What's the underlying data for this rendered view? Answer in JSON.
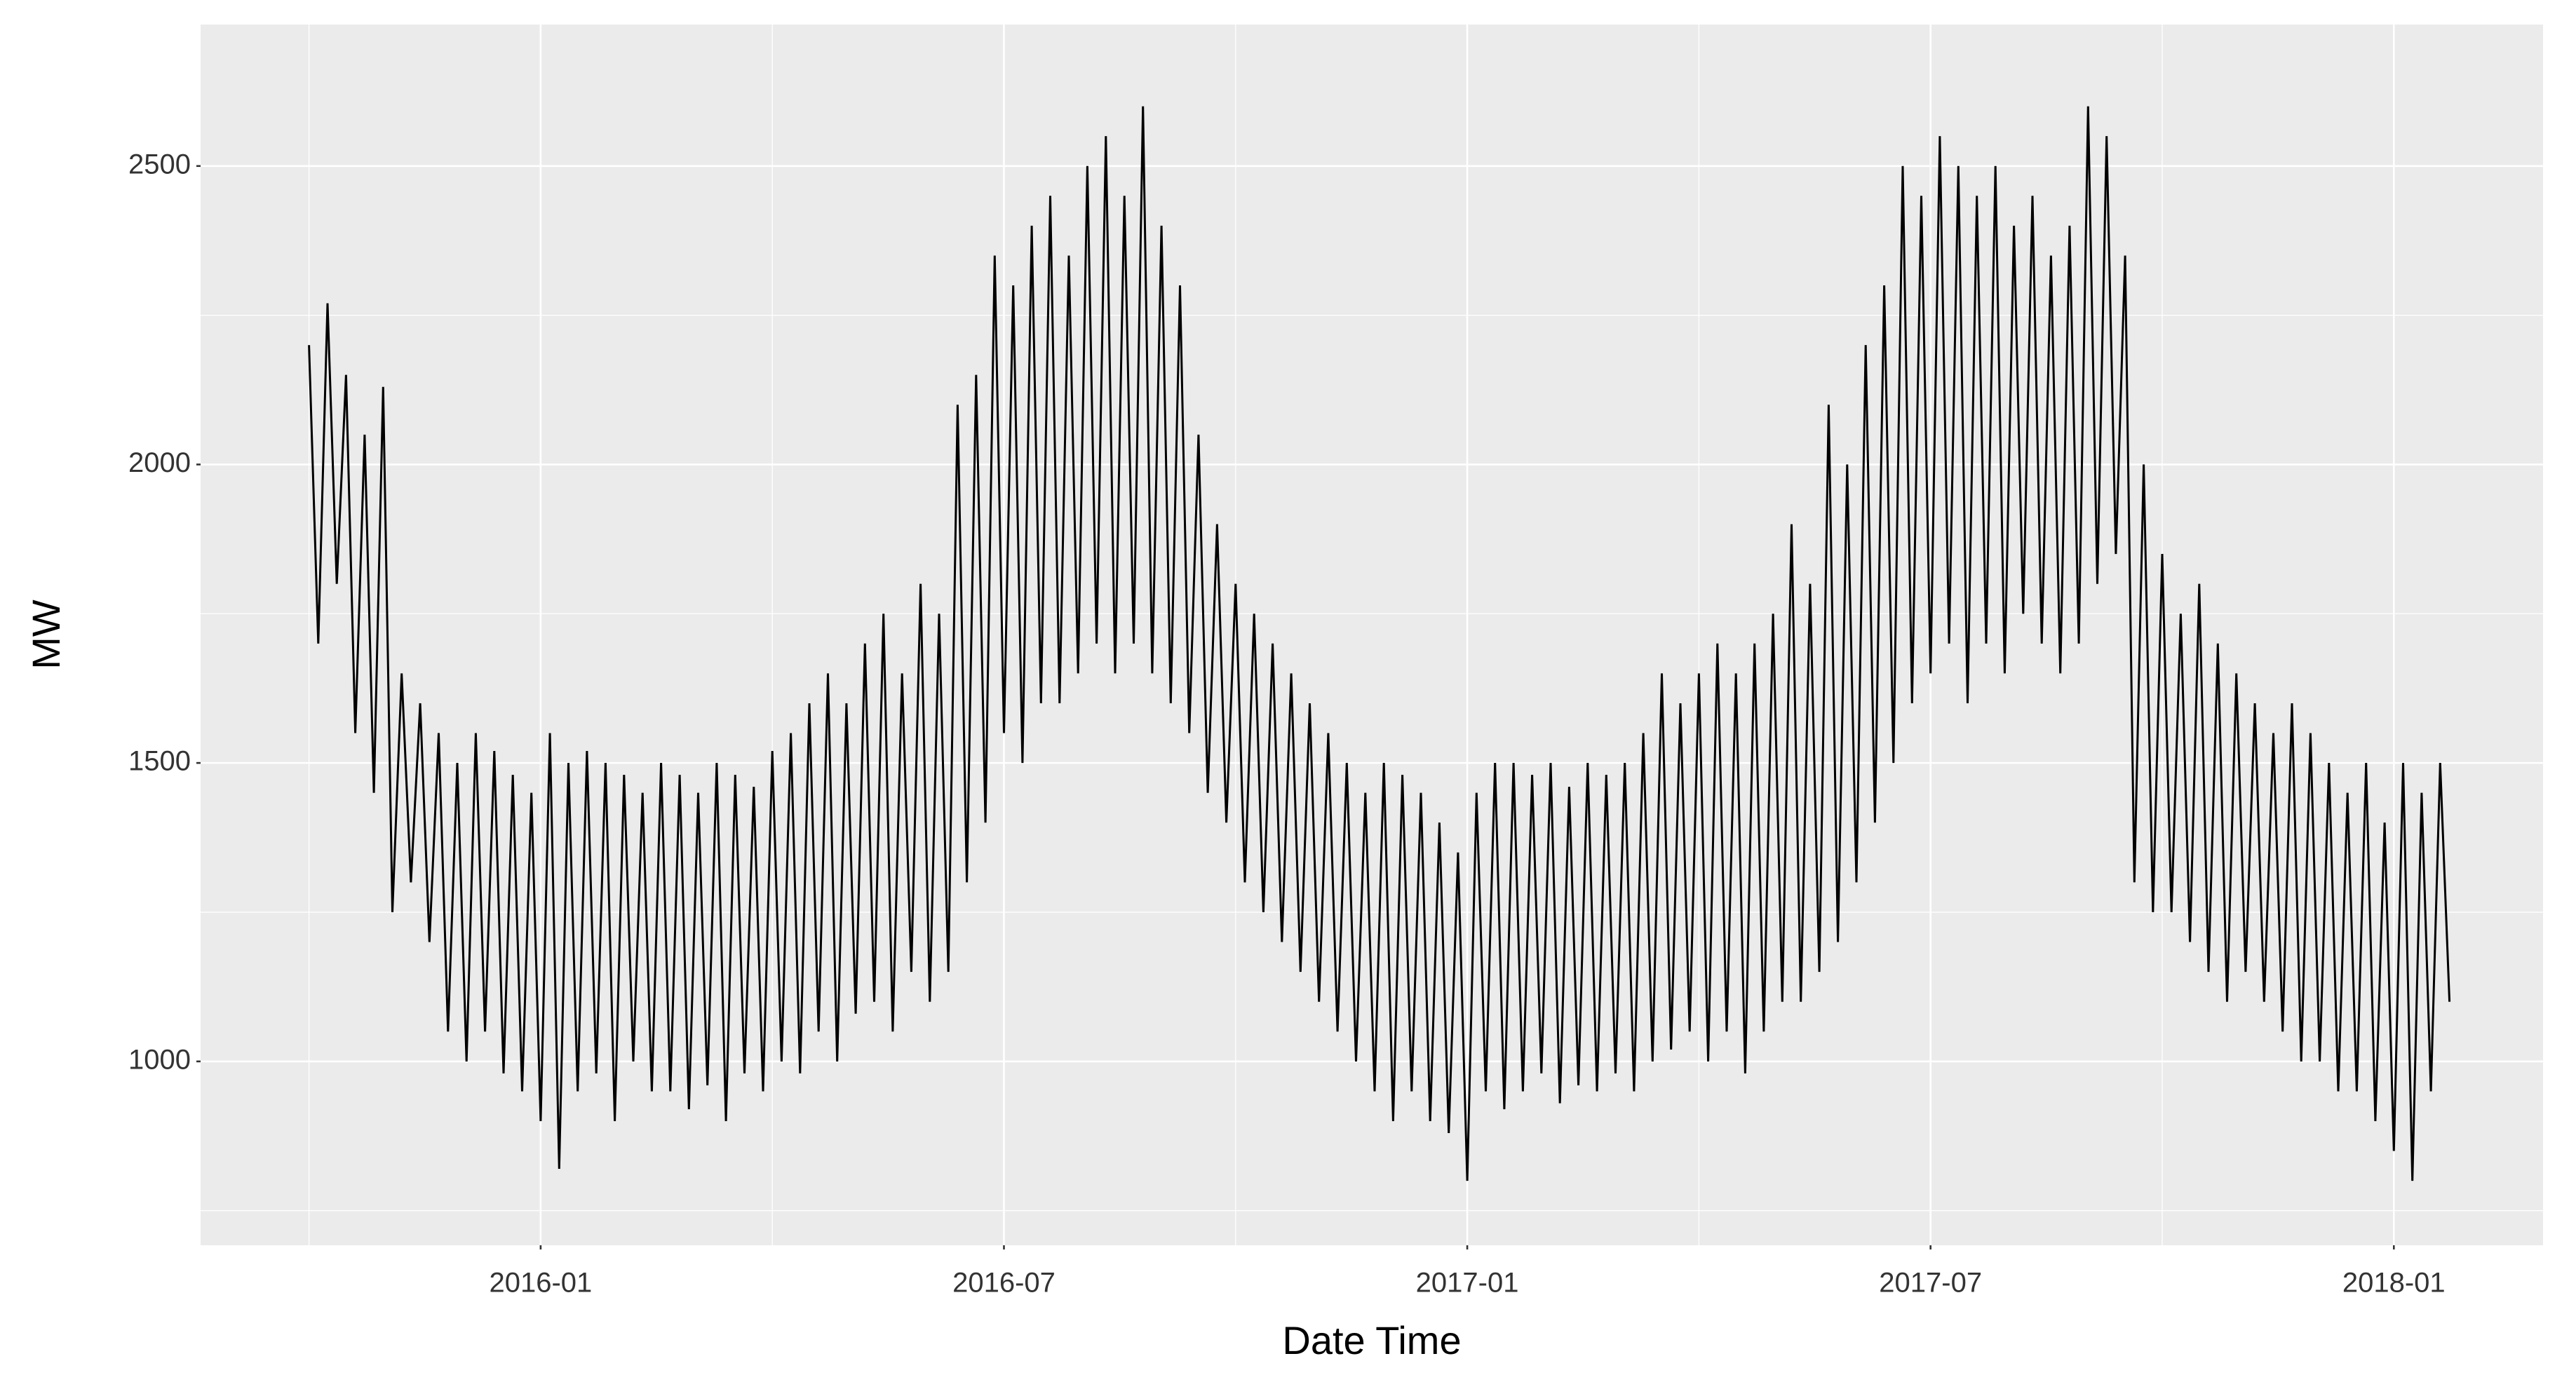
{
  "chart_data": {
    "type": "line",
    "x_label": "Date Time",
    "y_label": "MW",
    "xlim": [
      2015.633,
      2018.161
    ],
    "xticks": [
      {
        "value": 2016.0,
        "label": "2016-01"
      },
      {
        "value": 2016.5,
        "label": "2016-07"
      },
      {
        "value": 2017.0,
        "label": "2017-01"
      },
      {
        "value": 2017.5,
        "label": "2017-07"
      },
      {
        "value": 2018.0,
        "label": "2018-01"
      }
    ],
    "x_minor_ticks": [
      2015.75,
      2016.25,
      2016.75,
      2017.25,
      2017.75
    ],
    "ylim": [
      692,
      2737
    ],
    "yticks": [
      1000,
      1500,
      2000,
      2500
    ],
    "y_minor_ticks": [
      750,
      1250,
      1750,
      2250
    ],
    "grid": true,
    "panel_color": "#ebebeb",
    "grid_color": "#ffffff",
    "series": [
      {
        "color": "#000000",
        "x": [
          2015.75,
          2015.76,
          2015.77,
          2015.78,
          2015.79,
          2015.8,
          2015.81,
          2015.82,
          2015.83,
          2015.84,
          2015.85,
          2015.86,
          2015.87,
          2015.88,
          2015.89,
          2015.9,
          2015.91,
          2015.92,
          2015.93,
          2015.94,
          2015.95,
          2015.96,
          2015.97,
          2015.98,
          2015.99,
          2016.0,
          2016.01,
          2016.02,
          2016.03,
          2016.04,
          2016.05,
          2016.06,
          2016.07,
          2016.08,
          2016.09,
          2016.1,
          2016.11,
          2016.12,
          2016.13,
          2016.14,
          2016.15,
          2016.16,
          2016.17,
          2016.18,
          2016.19,
          2016.2,
          2016.21,
          2016.22,
          2016.23,
          2016.24,
          2016.25,
          2016.26,
          2016.27,
          2016.28,
          2016.29,
          2016.3,
          2016.31,
          2016.32,
          2016.33,
          2016.34,
          2016.35,
          2016.36,
          2016.37,
          2016.38,
          2016.39,
          2016.4,
          2016.41,
          2016.42,
          2016.43,
          2016.44,
          2016.45,
          2016.46,
          2016.47,
          2016.48,
          2016.49,
          2016.5,
          2016.51,
          2016.52,
          2016.53,
          2016.54,
          2016.55,
          2016.56,
          2016.57,
          2016.58,
          2016.59,
          2016.6,
          2016.61,
          2016.62,
          2016.63,
          2016.64,
          2016.65,
          2016.66,
          2016.67,
          2016.68,
          2016.69,
          2016.7,
          2016.71,
          2016.72,
          2016.73,
          2016.74,
          2016.75,
          2016.76,
          2016.77,
          2016.78,
          2016.79,
          2016.8,
          2016.81,
          2016.82,
          2016.83,
          2016.84,
          2016.85,
          2016.86,
          2016.87,
          2016.88,
          2016.89,
          2016.9,
          2016.91,
          2016.92,
          2016.93,
          2016.94,
          2016.95,
          2016.96,
          2016.97,
          2016.98,
          2016.99,
          2017.0,
          2017.01,
          2017.02,
          2017.03,
          2017.04,
          2017.05,
          2017.06,
          2017.07,
          2017.08,
          2017.09,
          2017.1,
          2017.11,
          2017.12,
          2017.13,
          2017.14,
          2017.15,
          2017.16,
          2017.17,
          2017.18,
          2017.19,
          2017.2,
          2017.21,
          2017.22,
          2017.23,
          2017.24,
          2017.25,
          2017.26,
          2017.27,
          2017.28,
          2017.29,
          2017.3,
          2017.31,
          2017.32,
          2017.33,
          2017.34,
          2017.35,
          2017.36,
          2017.37,
          2017.38,
          2017.39,
          2017.4,
          2017.41,
          2017.42,
          2017.43,
          2017.44,
          2017.45,
          2017.46,
          2017.47,
          2017.48,
          2017.49,
          2017.5,
          2017.51,
          2017.52,
          2017.53,
          2017.54,
          2017.55,
          2017.56,
          2017.57,
          2017.58,
          2017.59,
          2017.6,
          2017.61,
          2017.62,
          2017.63,
          2017.64,
          2017.65,
          2017.66,
          2017.67,
          2017.68,
          2017.69,
          2017.7,
          2017.71,
          2017.72,
          2017.73,
          2017.74,
          2017.75,
          2017.76,
          2017.77,
          2017.78,
          2017.79,
          2017.8,
          2017.81,
          2017.82,
          2017.83,
          2017.84,
          2017.85,
          2017.86,
          2017.87,
          2017.88,
          2017.89,
          2017.9,
          2017.91,
          2017.92,
          2017.93,
          2017.94,
          2017.95,
          2017.96,
          2017.97,
          2017.98,
          2017.99,
          2018.0,
          2018.01,
          2018.02,
          2018.03,
          2018.04,
          2018.05,
          2018.06
        ],
        "values": [
          2200,
          1700,
          2270,
          1800,
          2150,
          1550,
          2050,
          1450,
          2130,
          1250,
          1650,
          1300,
          1600,
          1200,
          1550,
          1050,
          1500,
          1000,
          1550,
          1050,
          1520,
          980,
          1480,
          950,
          1450,
          900,
          1550,
          820,
          1500,
          950,
          1520,
          980,
          1500,
          900,
          1480,
          1000,
          1450,
          950,
          1500,
          950,
          1480,
          920,
          1450,
          960,
          1500,
          900,
          1480,
          980,
          1460,
          950,
          1520,
          1000,
          1550,
          980,
          1600,
          1050,
          1650,
          1000,
          1600,
          1080,
          1700,
          1100,
          1750,
          1050,
          1650,
          1150,
          1800,
          1100,
          1750,
          1150,
          2100,
          1300,
          2150,
          1400,
          2350,
          1550,
          2300,
          1500,
          2400,
          1600,
          2450,
          1600,
          2350,
          1650,
          2500,
          1700,
          2550,
          1650,
          2450,
          1700,
          2600,
          1650,
          2400,
          1600,
          2300,
          1550,
          2050,
          1450,
          1900,
          1400,
          1800,
          1300,
          1750,
          1250,
          1700,
          1200,
          1650,
          1150,
          1600,
          1100,
          1550,
          1050,
          1500,
          1000,
          1450,
          950,
          1500,
          900,
          1480,
          950,
          1450,
          900,
          1400,
          880,
          1350,
          800,
          1450,
          950,
          1500,
          920,
          1500,
          950,
          1480,
          980,
          1500,
          930,
          1460,
          960,
          1500,
          950,
          1480,
          980,
          1500,
          950,
          1550,
          1000,
          1650,
          1020,
          1600,
          1050,
          1650,
          1000,
          1700,
          1050,
          1650,
          980,
          1700,
          1050,
          1750,
          1100,
          1900,
          1100,
          1800,
          1150,
          2100,
          1200,
          2000,
          1300,
          2200,
          1400,
          2300,
          1500,
          2500,
          1600,
          2450,
          1650,
          2550,
          1700,
          2500,
          1600,
          2450,
          1700,
          2500,
          1650,
          2400,
          1750,
          2450,
          1700,
          2350,
          1650,
          2400,
          1700,
          2600,
          1800,
          2550,
          1850,
          2350,
          1300,
          2000,
          1250,
          1850,
          1250,
          1750,
          1200,
          1800,
          1150,
          1700,
          1100,
          1650,
          1150,
          1600,
          1100,
          1550,
          1050,
          1600,
          1000,
          1550,
          1000,
          1500,
          950,
          1450,
          950,
          1500,
          900,
          1400,
          850,
          1500,
          800,
          1450,
          950,
          1500,
          1100
        ]
      }
    ]
  }
}
